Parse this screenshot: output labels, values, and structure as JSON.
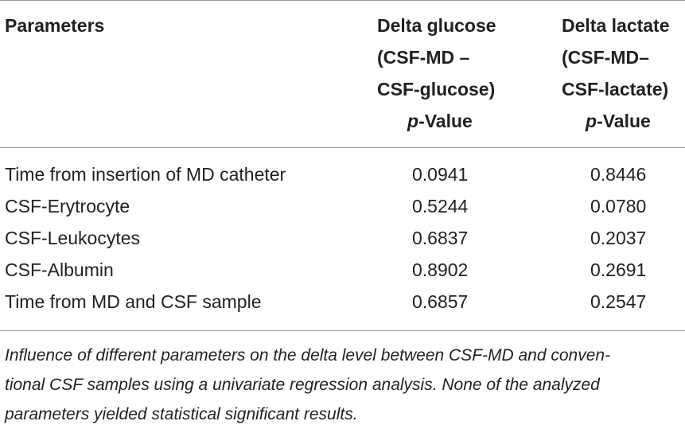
{
  "table": {
    "headers": {
      "parameters": "Parameters",
      "glucose": {
        "line1": "Delta glucose",
        "line2": "(CSF-MD –",
        "line3": "CSF-glucose)",
        "p_letter": "p",
        "p_suffix": "-Value"
      },
      "lactate": {
        "line1": "Delta lactate",
        "line2": "(CSF-MD–",
        "line3": "CSF-lactate)",
        "p_letter": "p",
        "p_suffix": "-Value"
      }
    },
    "rows": [
      {
        "parameter": "Time from insertion of MD catheter",
        "glucose_p": "0.0941",
        "lactate_p": "0.8446"
      },
      {
        "parameter": "CSF-Erytrocyte",
        "glucose_p": "0.5244",
        "lactate_p": "0.0780"
      },
      {
        "parameter": "CSF-Leukocytes",
        "glucose_p": "0.6837",
        "lactate_p": "0.2037"
      },
      {
        "parameter": "CSF-Albumin",
        "glucose_p": "0.8902",
        "lactate_p": "0.2691"
      },
      {
        "parameter": "Time from MD and CSF sample",
        "glucose_p": "0.6857",
        "lactate_p": "0.2547"
      }
    ]
  },
  "caption": {
    "line1": "Influence of different parameters on the delta level between CSF-MD and conven-",
    "line2": "tional CSF samples using a univariate regression analysis. None of the analyzed",
    "line3": "parameters yielded statistical significant results."
  }
}
